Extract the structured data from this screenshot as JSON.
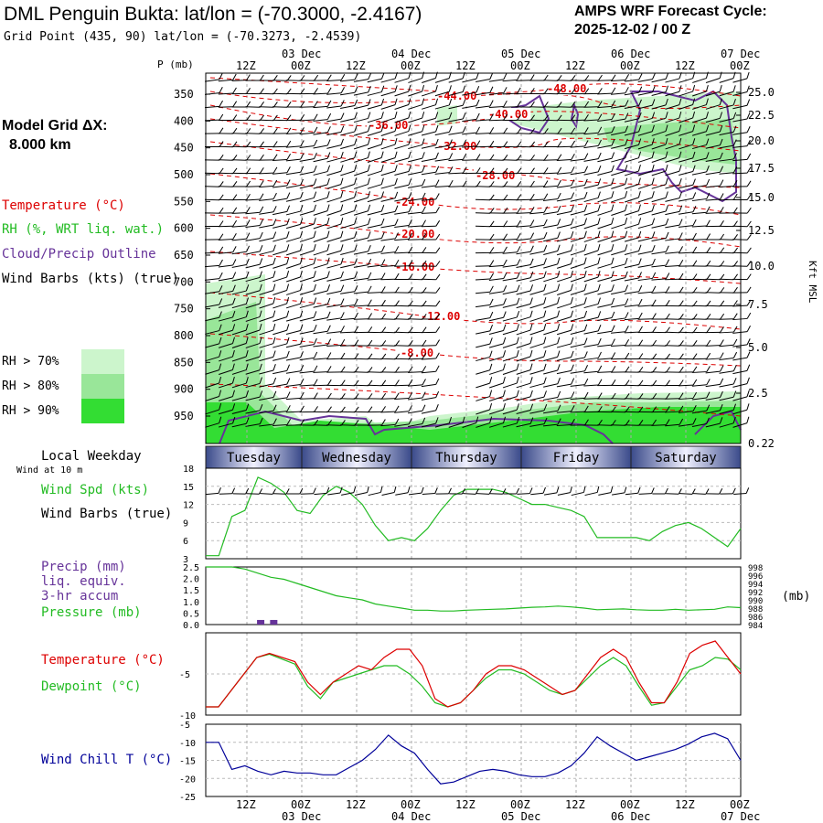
{
  "header": {
    "title": "DML Penguin Bukta:  lat/lon = (-70.3000, -2.4167)",
    "subtitle": "Grid Point (435, 90) lat/lon = (-70.3273, -2.4539)",
    "cycle_line1": "AMPS WRF Forecast Cycle:",
    "cycle_line2": "2025-12-02 / 00  Z"
  },
  "model_grid": {
    "line1": "Model Grid ΔX:",
    "line2": "8.000 km"
  },
  "legend": {
    "temperature": "Temperature (°C)",
    "rh": "RH (%, WRT liq. wat.)",
    "cloud": "Cloud/Precip Outline",
    "wind": "Wind Barbs (kts) (true)",
    "rh70": "RH > 70%",
    "rh80": "RH > 80%",
    "rh90": "RH > 90%"
  },
  "colors": {
    "temperature": "#dd0000",
    "rh": "#22bb22",
    "cloud": "#663399",
    "pressure": "#22bb22",
    "windchill": "#000099",
    "rh70": "#ccf5cc",
    "rh80": "#99e699",
    "rh90": "#33dd33",
    "weekday_band": "#3a4a8a"
  },
  "chart_data": [
    {
      "type": "contour",
      "name": "pressure-time cross section",
      "ylabel_left": "P (mb)",
      "ylabel_right": "Kft MSL",
      "pressure_levels": [
        350,
        400,
        450,
        500,
        550,
        600,
        650,
        700,
        750,
        800,
        850,
        900,
        950
      ],
      "height_ticks_kft": [
        "25.0",
        "22.5",
        "20.0",
        "17.5",
        "15.0",
        "12.5",
        "10.0",
        "7.5",
        "5.0",
        "2.5",
        "0.22"
      ],
      "time_ticks": [
        "12Z",
        "00Z",
        "12Z",
        "00Z",
        "12Z",
        "00Z",
        "12Z",
        "00Z",
        "12Z",
        "00Z"
      ],
      "date_labels": [
        "03 Dec",
        "04 Dec",
        "05 Dec",
        "06 Dec",
        "07 Dec"
      ],
      "weekdays": [
        "Tuesday",
        "Wednesday",
        "Thursday",
        "Friday",
        "Saturday"
      ],
      "weekday_title": "Local Weekday",
      "temperature_contour_labels": [
        "-48.00",
        "-44.00",
        "-40.00",
        "-36.00",
        "-32.00",
        "-28.00",
        "-24.00",
        "-20.00",
        "-16.00",
        "-12.00",
        "-8.00"
      ]
    },
    {
      "type": "line",
      "name": "wind speed",
      "title": "Wind at 10 m",
      "label1": "Wind Spd (kts)",
      "label2": "Wind Barbs (true)",
      "ylim": [
        3,
        18
      ],
      "yticks": [
        "3",
        "6",
        "9",
        "12",
        "15",
        "18"
      ],
      "values": [
        3.5,
        3.5,
        10,
        11,
        16.5,
        15.5,
        14,
        11,
        10.5,
        13.5,
        15,
        14,
        12,
        8.5,
        6,
        6.5,
        6,
        8,
        11,
        13.5,
        14.5,
        14.5,
        14.5,
        14,
        13,
        12,
        12,
        11.5,
        11,
        10,
        6.5,
        6.5,
        6.5,
        6.5,
        6,
        7.5,
        8.5,
        9,
        8,
        6.5,
        5,
        8
      ]
    },
    {
      "type": "bar+line",
      "name": "precip and pressure",
      "label1": "Precip (mm)",
      "label2": "liq. equiv.",
      "label3": "3-hr accum",
      "label4": "Pressure (mb)",
      "unit_right": "(mb)",
      "precip_yticks": [
        "2.5",
        "2.0",
        "1.5",
        "1.0",
        "0.5",
        "0.0"
      ],
      "pressure_yticks": [
        "998",
        "996",
        "994",
        "992",
        "990",
        "988",
        "986",
        "984"
      ],
      "precip_ylim": [
        0,
        2.5
      ],
      "pressure_ylim": [
        984,
        998
      ],
      "precip_values": [
        0,
        0,
        0,
        0,
        0.2,
        0.2,
        0,
        0,
        0,
        0,
        0,
        0,
        0,
        0,
        0,
        0,
        0,
        0,
        0,
        0,
        0,
        0,
        0,
        0,
        0,
        0,
        0,
        0,
        0,
        0,
        0,
        0,
        0,
        0,
        0,
        0,
        0,
        0,
        0,
        0,
        0,
        0
      ],
      "pressure_values": [
        998,
        998,
        998,
        997.5,
        996.5,
        995.5,
        995,
        994,
        993,
        992,
        991,
        990.5,
        990,
        989,
        988.5,
        988,
        987.5,
        987.5,
        987.3,
        987.3,
        987.5,
        987.6,
        987.7,
        987.8,
        988,
        988.2,
        988.3,
        988.5,
        988.3,
        988,
        987.6,
        987.7,
        987.8,
        987.6,
        987.5,
        987.5,
        987.7,
        987.5,
        987.6,
        987.7,
        988.3,
        988.1
      ]
    },
    {
      "type": "line",
      "name": "temperature and dewpoint",
      "label1": "Temperature (°C)",
      "label2": "Dewpoint (°C)",
      "ylim": [
        -10,
        0
      ],
      "yticks": [
        "-5",
        "-10"
      ],
      "series": [
        {
          "name": "Temperature",
          "values": [
            -9,
            -9,
            -7,
            -5,
            -3,
            -2.5,
            -3,
            -3.5,
            -6,
            -7.5,
            -6,
            -5,
            -4,
            -4.5,
            -3,
            -2,
            -2,
            -4,
            -8,
            -9,
            -8.5,
            -7,
            -5,
            -4,
            -4,
            -4.5,
            -5.5,
            -6.5,
            -7.5,
            -7,
            -5,
            -3,
            -2,
            -3,
            -6,
            -8.5,
            -8.5,
            -6,
            -2.5,
            -1.5,
            -1,
            -3,
            -5
          ]
        },
        {
          "name": "Dewpoint",
          "values": [
            -9,
            -9,
            -7,
            -5,
            -3,
            -2.6,
            -3.2,
            -3.8,
            -6.5,
            -8,
            -6,
            -5.5,
            -5,
            -4.5,
            -4,
            -4,
            -5,
            -6.5,
            -8.5,
            -9,
            -8.5,
            -7,
            -5.5,
            -4.5,
            -4.5,
            -5,
            -6,
            -7,
            -7.5,
            -7,
            -5.5,
            -4,
            -3,
            -4,
            -6.5,
            -8.8,
            -8.5,
            -6.5,
            -4.5,
            -4,
            -3,
            -3.2,
            -4.5
          ]
        }
      ]
    },
    {
      "type": "line",
      "name": "wind chill",
      "label1": "Wind Chill T (°C)",
      "ylim": [
        -25,
        -5
      ],
      "yticks": [
        "-5",
        "-10",
        "-15",
        "-20",
        "-25"
      ],
      "values": [
        -10,
        -10,
        -17.5,
        -16.5,
        -18,
        -19,
        -18,
        -18.5,
        -18.5,
        -19,
        -19,
        -17,
        -15,
        -12,
        -8,
        -11,
        -13,
        -17.5,
        -21.5,
        -21,
        -19.5,
        -18,
        -17.5,
        -18,
        -19,
        -19.5,
        -19.5,
        -18.5,
        -16.5,
        -13,
        -8.5,
        -11,
        -13,
        -15,
        -14,
        -13,
        -12,
        -10.5,
        -8.5,
        -7.5,
        -9,
        -15
      ]
    }
  ]
}
